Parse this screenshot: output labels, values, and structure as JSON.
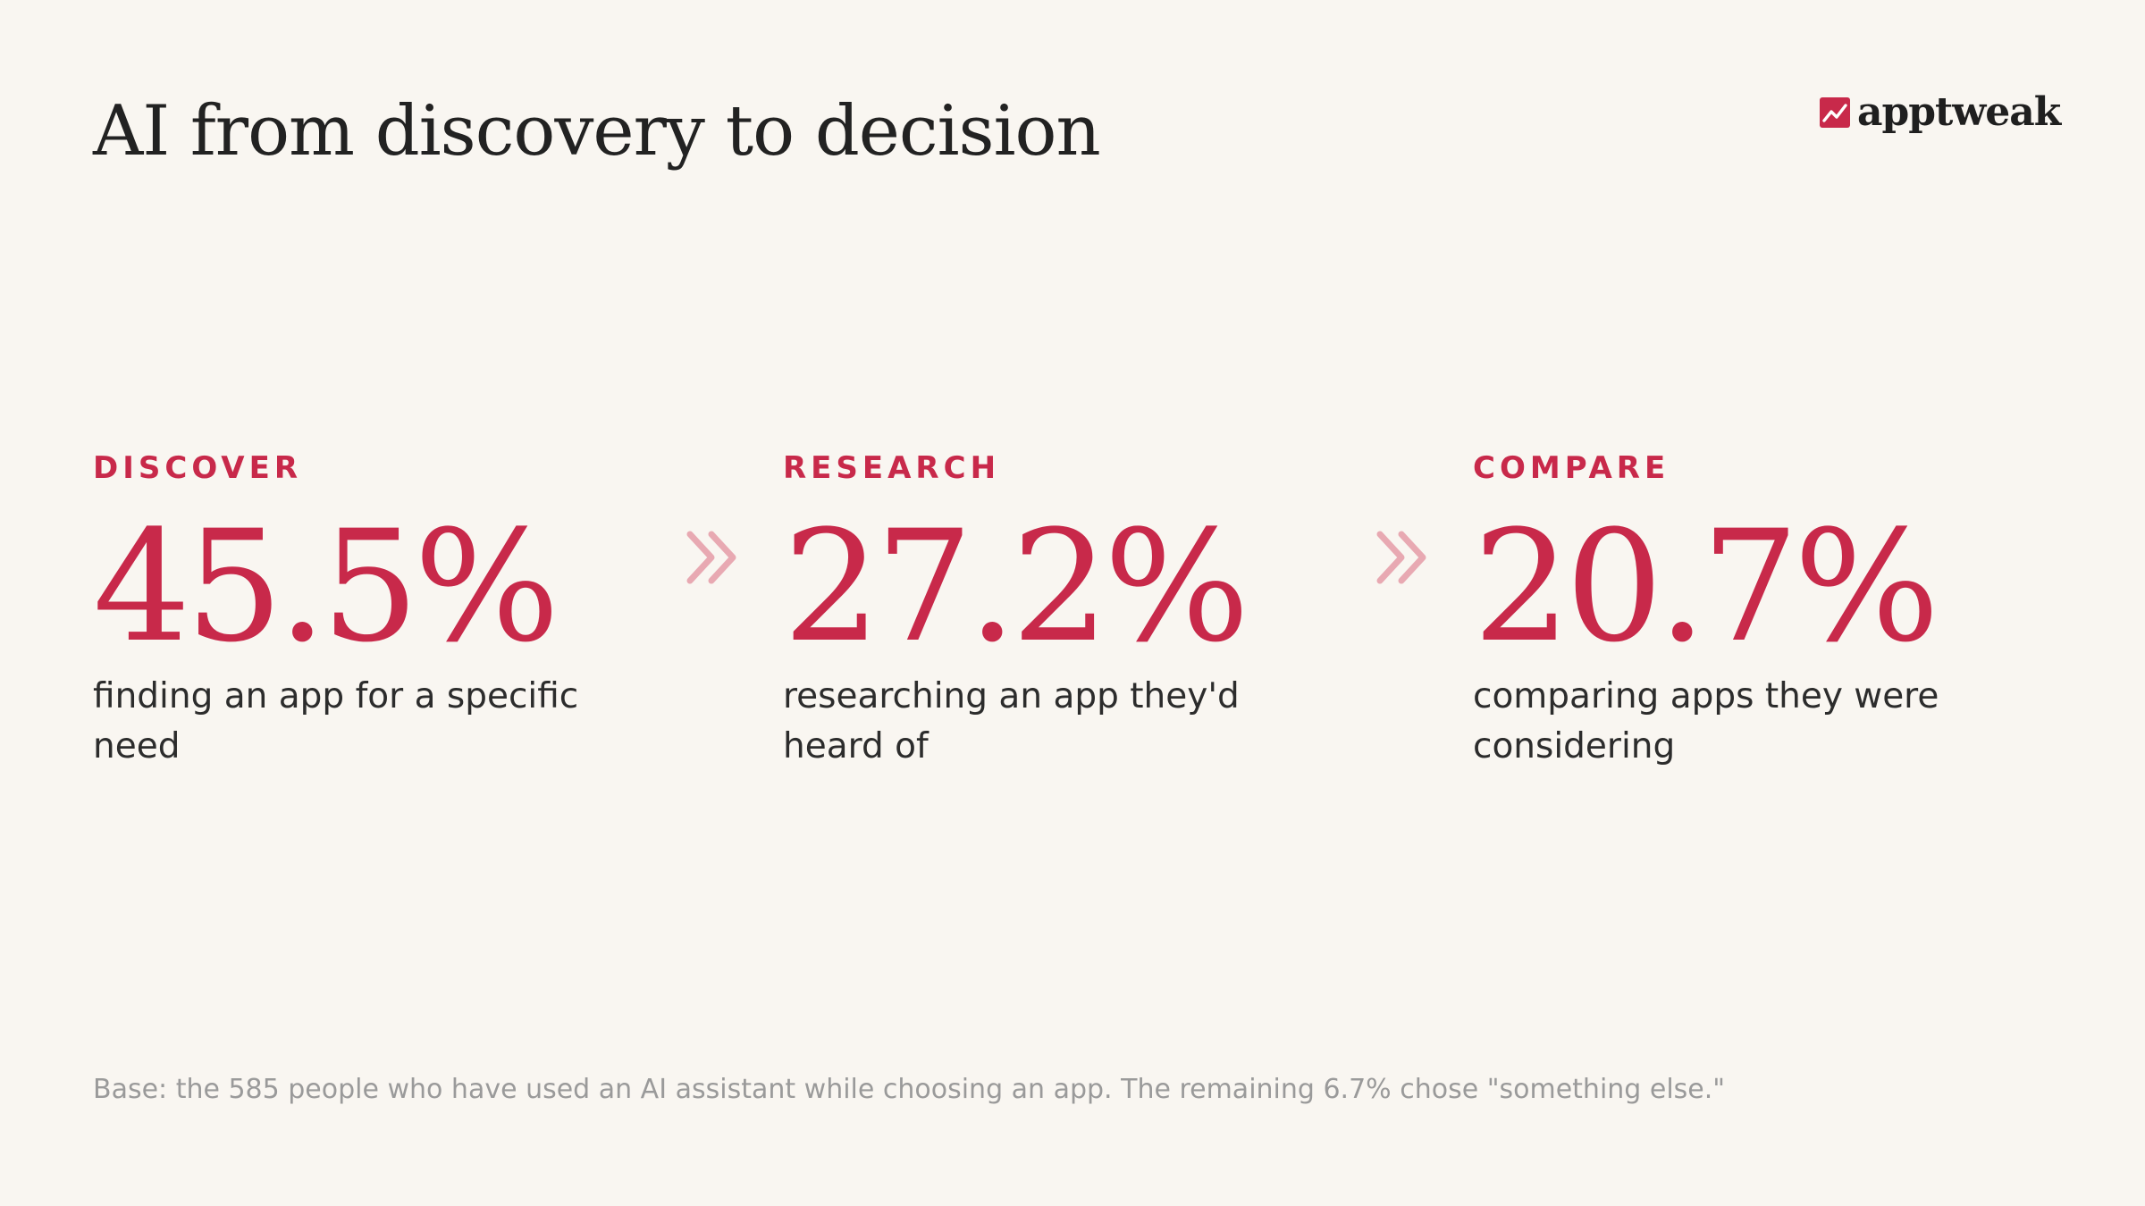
{
  "title": "AI from discovery to decision",
  "brand": {
    "name": "apptweak",
    "icon": "trend-chart-icon",
    "accent_color": "#c8294a"
  },
  "stages": [
    {
      "label": "DISCOVER",
      "value": "45.5%",
      "description": "finding an app for a specific need"
    },
    {
      "label": "RESEARCH",
      "value": "27.2%",
      "description": "researching an app they'd heard of"
    },
    {
      "label": "COMPARE",
      "value": "20.7%",
      "description": "comparing apps they were considering"
    }
  ],
  "connector_icon": "double-chevron-right-icon",
  "connector_color": "#e8a9b2",
  "footnote": "Base: the 585 people who have used an AI assistant while choosing an app. The remaining 6.7% chose \"something else.\""
}
